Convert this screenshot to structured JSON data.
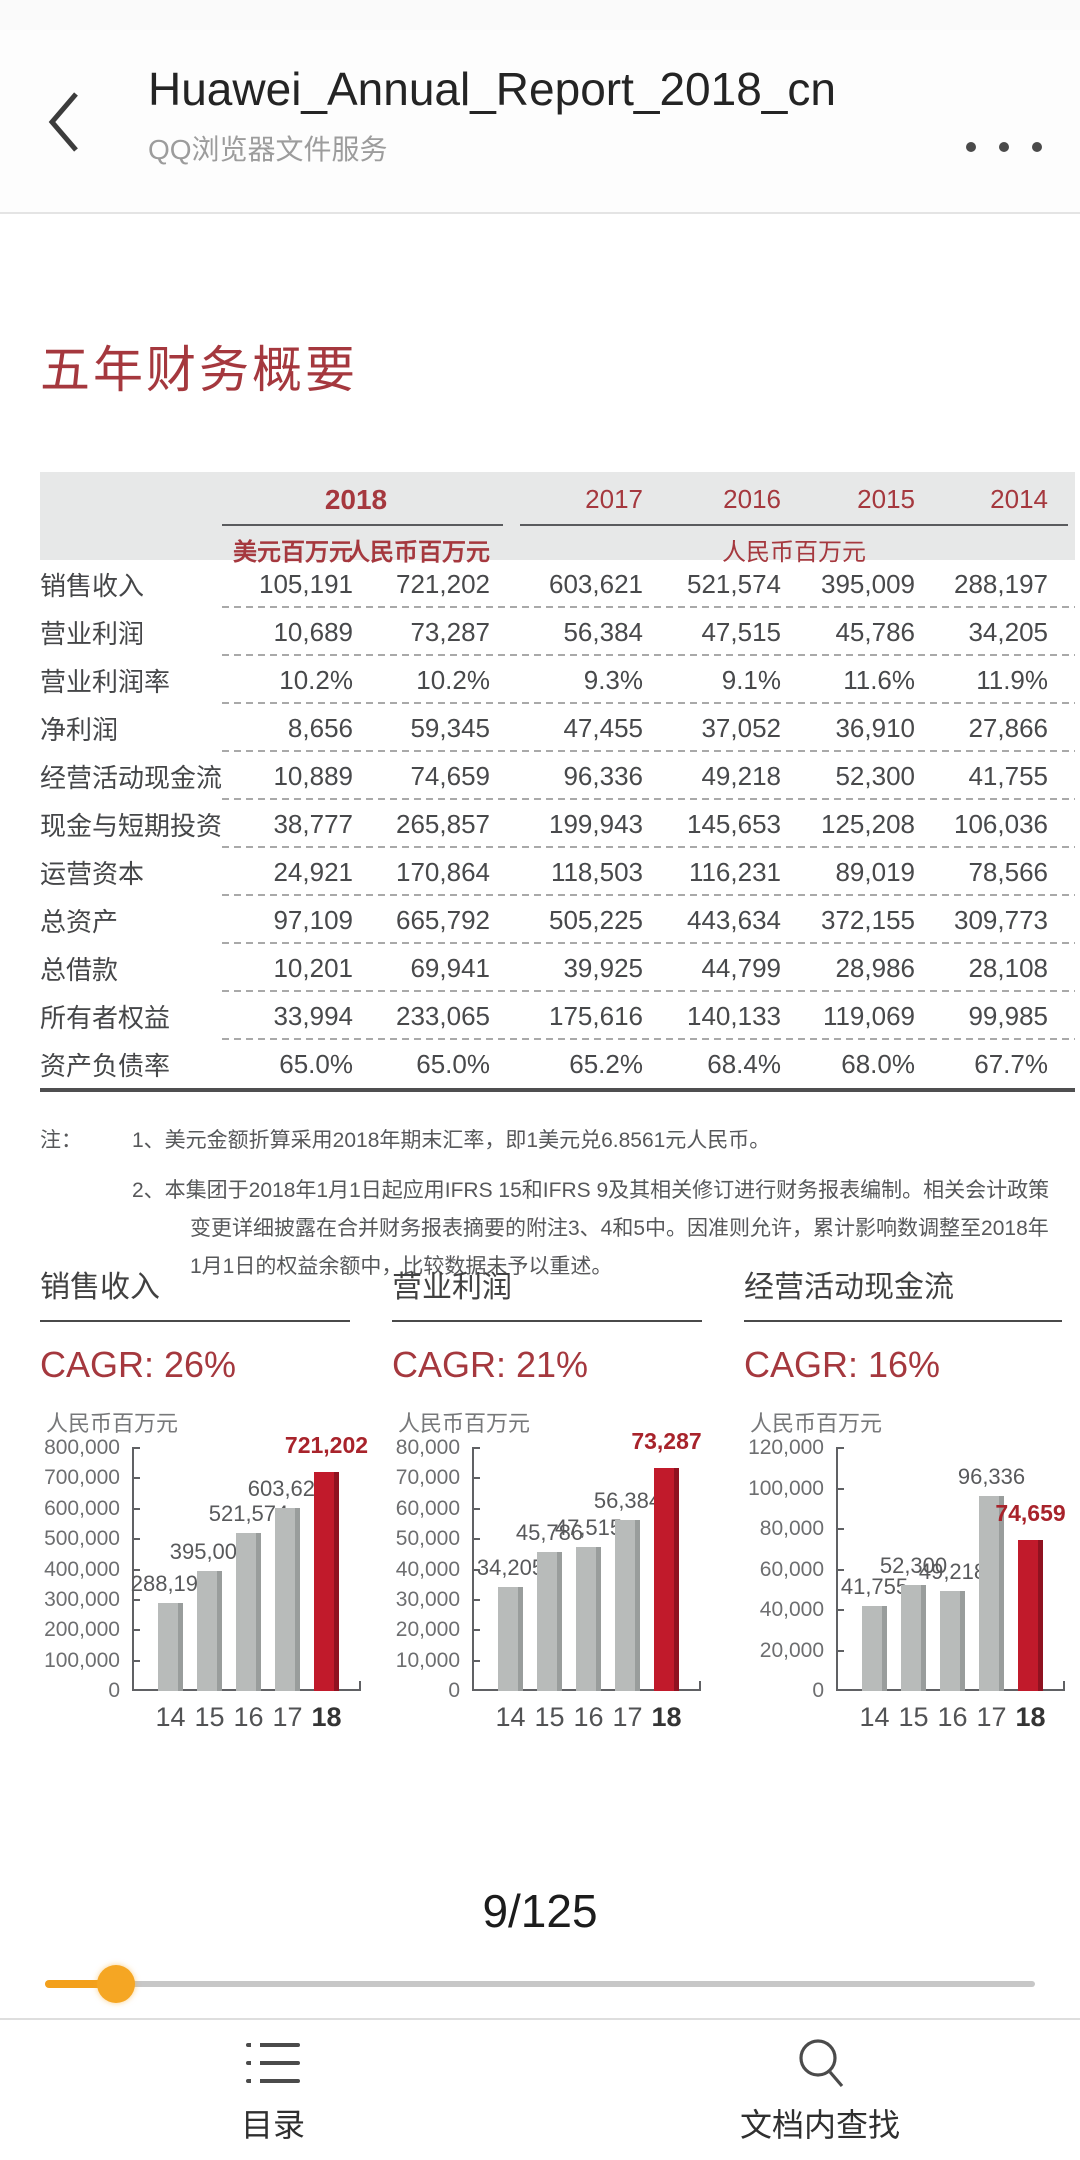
{
  "header": {
    "title": "Huawei_Annual_Report_2018_cn",
    "subtitle": "QQ浏览器文件服务"
  },
  "document": {
    "page_title": "五年财务概要",
    "table": {
      "year_group_2018": "2018",
      "year_2017": "2017",
      "year_2016": "2016",
      "year_2015": "2015",
      "year_2014": "2014",
      "subheader_usd": "美元百万元",
      "subheader_cny": "人民币百万元",
      "subheader_cny_group": "人民币百万元",
      "rows": [
        {
          "label": "销售收入",
          "values": [
            "105,191",
            "721,202",
            "603,621",
            "521,574",
            "395,009",
            "288,197"
          ]
        },
        {
          "label": "营业利润",
          "values": [
            "10,689",
            "73,287",
            "56,384",
            "47,515",
            "45,786",
            "34,205"
          ]
        },
        {
          "label": "营业利润率",
          "values": [
            "10.2%",
            "10.2%",
            "9.3%",
            "9.1%",
            "11.6%",
            "11.9%"
          ]
        },
        {
          "label": "净利润",
          "values": [
            "8,656",
            "59,345",
            "47,455",
            "37,052",
            "36,910",
            "27,866"
          ]
        },
        {
          "label": "经营活动现金流",
          "values": [
            "10,889",
            "74,659",
            "96,336",
            "49,218",
            "52,300",
            "41,755"
          ]
        },
        {
          "label": "现金与短期投资",
          "values": [
            "38,777",
            "265,857",
            "199,943",
            "145,653",
            "125,208",
            "106,036"
          ]
        },
        {
          "label": "运营资本",
          "values": [
            "24,921",
            "170,864",
            "118,503",
            "116,231",
            "89,019",
            "78,566"
          ]
        },
        {
          "label": "总资产",
          "values": [
            "97,109",
            "665,792",
            "505,225",
            "443,634",
            "372,155",
            "309,773"
          ]
        },
        {
          "label": "总借款",
          "values": [
            "10,201",
            "69,941",
            "39,925",
            "44,799",
            "28,986",
            "28,108"
          ]
        },
        {
          "label": "所有者权益",
          "values": [
            "33,994",
            "233,065",
            "175,616",
            "140,133",
            "119,069",
            "99,985"
          ]
        },
        {
          "label": "资产负债率",
          "values": [
            "65.0%",
            "65.0%",
            "65.2%",
            "68.4%",
            "68.0%",
            "67.7%"
          ]
        }
      ]
    },
    "notes": {
      "label": "注：",
      "items": [
        "1、美元金额折算采用2018年期末汇率，即1美元兑6.8561元人民币。",
        "2、本集团于2018年1月1日起应用IFRS 15和IFRS 9及其相关修订进行财务报表编制。相关会计政策变更详细披露在合并财务报表摘要的附注3、4和5中。因准则允许，累计影响数调整至2018年1月1日的权益余额中，比较数据未予以重述。"
      ]
    }
  },
  "chart_data": [
    {
      "type": "bar",
      "title": "销售收入",
      "cagr_label": "CAGR: 26%",
      "unit_label": "人民币百万元",
      "categories": [
        "14",
        "15",
        "16",
        "17",
        "18"
      ],
      "values": [
        288197,
        395009,
        521574,
        603621,
        721202
      ],
      "value_labels": [
        "288,197",
        "395,009",
        "521,574",
        "603,621",
        "721,202"
      ],
      "highlight_index": 4,
      "ylim": [
        0,
        800000
      ],
      "ytick_step": 100000,
      "yticks": [
        "800,000",
        "700,000",
        "600,000",
        "500,000",
        "400,000",
        "300,000",
        "200,000",
        "100,000",
        "0"
      ],
      "grid": false,
      "legend": false
    },
    {
      "type": "bar",
      "title": "营业利润",
      "cagr_label": "CAGR: 21%",
      "unit_label": "人民币百万元",
      "categories": [
        "14",
        "15",
        "16",
        "17",
        "18"
      ],
      "values": [
        34205,
        45786,
        47515,
        56384,
        73287
      ],
      "value_labels": [
        "34,205",
        "45,786",
        "47,515",
        "56,384",
        "73,287"
      ],
      "highlight_index": 4,
      "ylim": [
        0,
        80000
      ],
      "ytick_step": 10000,
      "yticks": [
        "80,000",
        "70,000",
        "60,000",
        "50,000",
        "40,000",
        "30,000",
        "20,000",
        "10,000",
        "0"
      ],
      "grid": false,
      "legend": false
    },
    {
      "type": "bar",
      "title": "经营活动现金流",
      "cagr_label": "CAGR: 16%",
      "unit_label": "人民币百万元",
      "categories": [
        "14",
        "15",
        "16",
        "17",
        "18"
      ],
      "values": [
        41755,
        52300,
        49218,
        96336,
        74659
      ],
      "value_labels": [
        "41,755",
        "52,300",
        "49,218",
        "96,336",
        "74,659"
      ],
      "highlight_index": 4,
      "ylim": [
        0,
        120000
      ],
      "ytick_step": 20000,
      "yticks": [
        "120,000",
        "100,000",
        "80,000",
        "60,000",
        "40,000",
        "20,000",
        "0"
      ],
      "grid": false,
      "legend": false
    }
  ],
  "footer": {
    "page_indicator": "9/125",
    "slider": {
      "percent": 7.2
    },
    "nav": [
      {
        "label": "目录",
        "icon": "toc-icon"
      },
      {
        "label": "文档内查找",
        "icon": "search-icon"
      }
    ]
  },
  "colors": {
    "accent_red_text": "#a5383e",
    "bar_gray": "#b8bbba",
    "bar_gray_edge": "#999d9c",
    "bar_red": "#c11a2b",
    "bar_red_edge": "#8f1220",
    "chart_highlight_label": "#a8232b",
    "slider_orange": "#f5a623"
  }
}
